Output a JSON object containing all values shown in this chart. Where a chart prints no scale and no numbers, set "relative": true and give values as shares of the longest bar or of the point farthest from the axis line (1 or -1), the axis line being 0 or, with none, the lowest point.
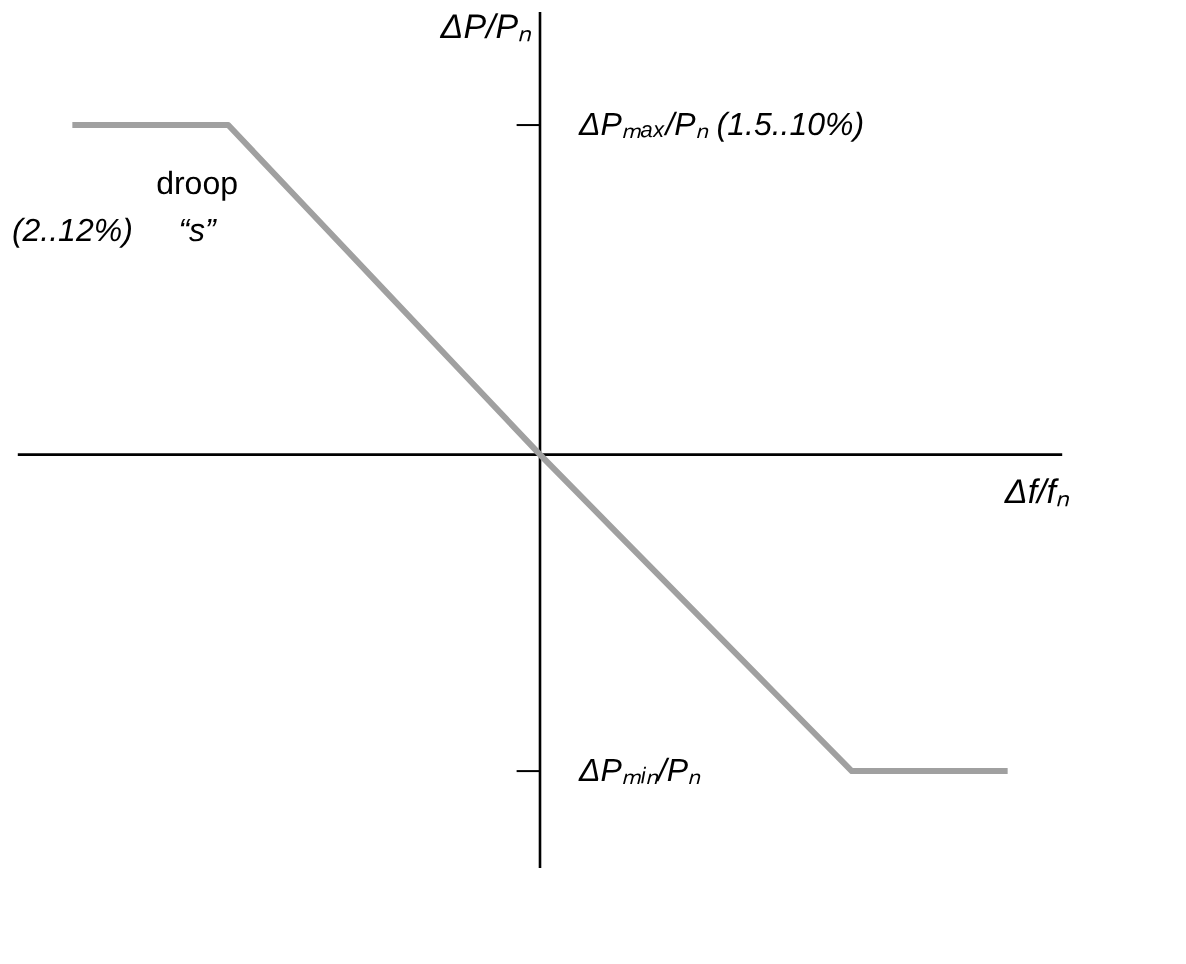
{
  "chart_data": {
    "type": "line",
    "relative": true,
    "xlabel": "Δf/fₙ",
    "ylabel": "ΔP/Pₙ",
    "categories": [
      null,
      null,
      null,
      null,
      null,
      null,
      null,
      null,
      null,
      null,
      null,
      null,
      null
    ],
    "series": [
      {
        "color": "#a0a0a0",
        "values": [
          1,
          1,
          1,
          0.75,
          0.5,
          0.25,
          0,
          -0.24,
          -0.48,
          -0.72,
          -0.96,
          -0.96,
          -0.96
        ]
      }
    ],
    "annotations": [
      "ΔPₘₐₓ/Pₙ (1.5..10%)",
      "ΔPₘᵢₙ/Pₙ",
      "droop",
      "“s”",
      "(2..12%)"
    ],
    "marker": "none",
    "line_style": "solid"
  }
}
